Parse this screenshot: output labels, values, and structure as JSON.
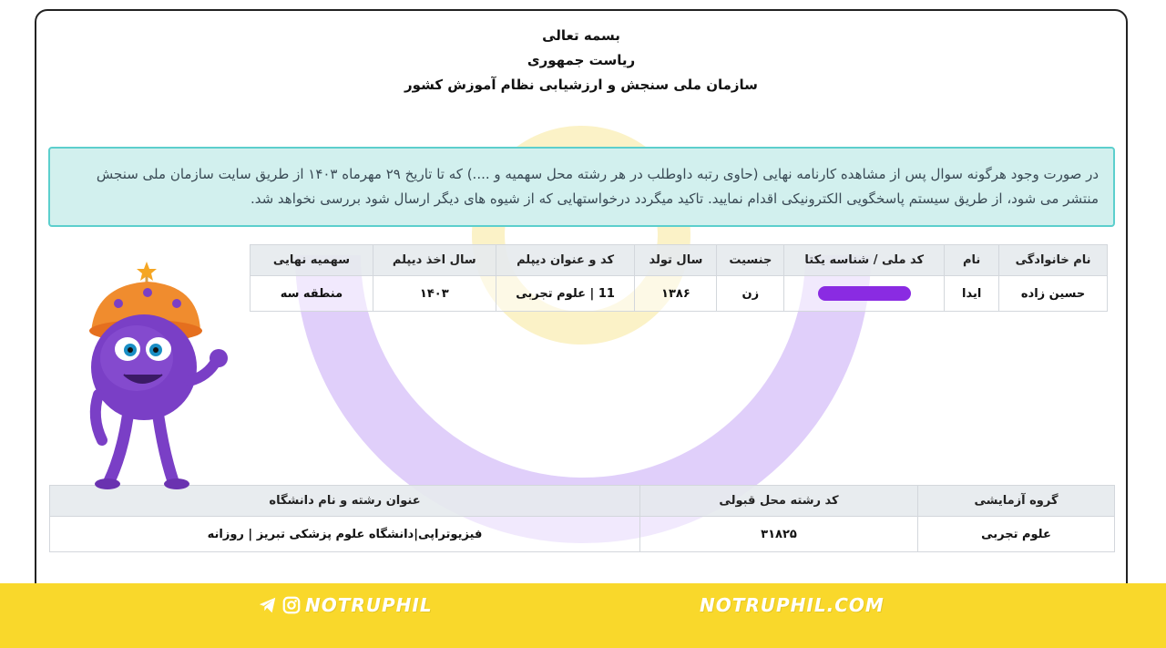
{
  "header": {
    "line1": "بسمه تعالی",
    "line2": "ریاست جمهوری",
    "line3": "سازمان ملی سنجش و ارزشیابی نظام آموزش کشور"
  },
  "notice": {
    "text": "در صورت وجود هرگونه سوال پس از مشاهده کارنامه نهایی (حاوی رتبه داوطلب در هر رشته محل سهمیه و ....) که تا تاریخ ۲۹ مهرماه ۱۴۰۳ از طریق سایت سازمان ملی سنجش منتشر می شود، از طریق سیستم پاسخگویی الکترونیکی اقدام نمایید. تاکید میگردد درخواستهایی که از شیوه های دیگر ارسال شود بررسی نخواهد شد."
  },
  "student_table": {
    "headers": [
      "نام خانوادگی",
      "نام",
      "کد ملی / شناسه یکتا",
      "جنسیت",
      "سال تولد",
      "کد و عنوان دیپلم",
      "سال اخذ دیپلم",
      "سهمیه نهایی"
    ],
    "row": {
      "family": "حسین زاده",
      "name": "ایدا",
      "gender": "زن",
      "birth_year": "۱۳۸۶",
      "diploma": "11 | علوم تجربی",
      "diploma_year": "۱۴۰۳",
      "quota": "منطقه سه"
    }
  },
  "result_table": {
    "headers": [
      "گروه آزمایشی",
      "کد رشته محل قبولی",
      "عنوان رشته و نام دانشگاه"
    ],
    "row": {
      "group": "علوم تجربی",
      "code": "۳۱۸۲۵",
      "program": "فیزیوتراپی|دانشگاه علوم پزشکی تبریز | روزانه"
    }
  },
  "footer": {
    "brand_left": "NOTRUPHIL",
    "brand_right": "NOTRUPHIL.COM"
  },
  "colors": {
    "footer_bg": "#f9d82b",
    "notice_bg": "#d2f0ee",
    "notice_border": "#5ccfcd",
    "mask": "#8a2be2",
    "ring_purple": "#b48cf2",
    "ring_yellow": "#f5e07a"
  },
  "icons": [
    "telegram-icon",
    "instagram-icon"
  ]
}
